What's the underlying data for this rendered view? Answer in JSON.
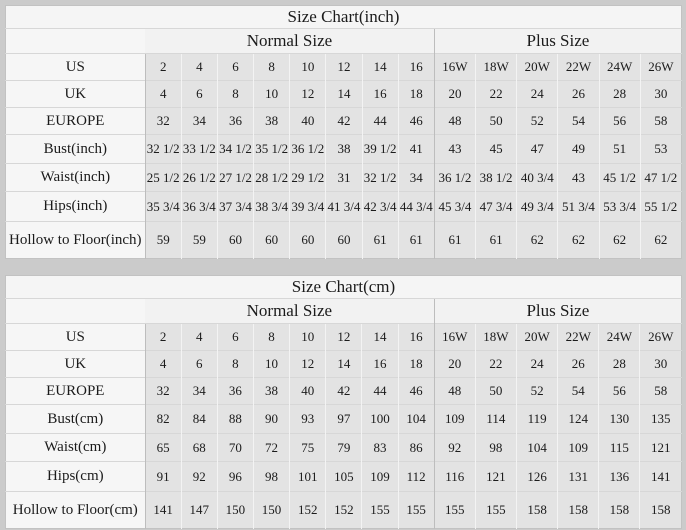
{
  "page": {
    "background": "#cbcbcb",
    "cell_gray": "#e3e3e3",
    "panel_light": "#f5f5f5"
  },
  "chart_data": [
    {
      "type": "table",
      "title": "Size Chart(inch)",
      "group_headers": [
        "Normal Size",
        "Plus Size"
      ],
      "group_spans": [
        8,
        6
      ],
      "rows": [
        {
          "label": "US",
          "values": [
            "2",
            "4",
            "6",
            "8",
            "10",
            "12",
            "14",
            "16",
            "16W",
            "18W",
            "20W",
            "22W",
            "24W",
            "26W"
          ]
        },
        {
          "label": "UK",
          "values": [
            "4",
            "6",
            "8",
            "10",
            "12",
            "14",
            "16",
            "18",
            "20",
            "22",
            "24",
            "26",
            "28",
            "30"
          ]
        },
        {
          "label": "EUROPE",
          "values": [
            "32",
            "34",
            "36",
            "38",
            "40",
            "42",
            "44",
            "46",
            "48",
            "50",
            "52",
            "54",
            "56",
            "58"
          ]
        },
        {
          "label": "Bust(inch)",
          "values": [
            "32 1/2",
            "33 1/2",
            "34 1/2",
            "35 1/2",
            "36 1/2",
            "38",
            "39 1/2",
            "41",
            "43",
            "45",
            "47",
            "49",
            "51",
            "53"
          ]
        },
        {
          "label": "Waist(inch)",
          "values": [
            "25 1/2",
            "26 1/2",
            "27 1/2",
            "28 1/2",
            "29 1/2",
            "31",
            "32 1/2",
            "34",
            "36 1/2",
            "38 1/2",
            "40 3/4",
            "43",
            "45 1/2",
            "47 1/2"
          ]
        },
        {
          "label": "Hips(inch)",
          "values": [
            "35 3/4",
            "36 3/4",
            "37 3/4",
            "38 3/4",
            "39 3/4",
            "41 3/4",
            "42 3/4",
            "44 3/4",
            "45 3/4",
            "47 3/4",
            "49 3/4",
            "51 3/4",
            "53 3/4",
            "55 1/2"
          ]
        },
        {
          "label": "Hollow to Floor(inch)",
          "values": [
            "59",
            "59",
            "60",
            "60",
            "60",
            "60",
            "61",
            "61",
            "61",
            "61",
            "62",
            "62",
            "62",
            "62"
          ]
        }
      ]
    },
    {
      "type": "table",
      "title": "Size Chart(cm)",
      "group_headers": [
        "Normal Size",
        "Plus Size"
      ],
      "group_spans": [
        8,
        6
      ],
      "rows": [
        {
          "label": "US",
          "values": [
            "2",
            "4",
            "6",
            "8",
            "10",
            "12",
            "14",
            "16",
            "16W",
            "18W",
            "20W",
            "22W",
            "24W",
            "26W"
          ]
        },
        {
          "label": "UK",
          "values": [
            "4",
            "6",
            "8",
            "10",
            "12",
            "14",
            "16",
            "18",
            "20",
            "22",
            "24",
            "26",
            "28",
            "30"
          ]
        },
        {
          "label": "EUROPE",
          "values": [
            "32",
            "34",
            "36",
            "38",
            "40",
            "42",
            "44",
            "46",
            "48",
            "50",
            "52",
            "54",
            "56",
            "58"
          ]
        },
        {
          "label": "Bust(cm)",
          "values": [
            "82",
            "84",
            "88",
            "90",
            "93",
            "97",
            "100",
            "104",
            "109",
            "114",
            "119",
            "124",
            "130",
            "135"
          ]
        },
        {
          "label": "Waist(cm)",
          "values": [
            "65",
            "68",
            "70",
            "72",
            "75",
            "79",
            "83",
            "86",
            "92",
            "98",
            "104",
            "109",
            "115",
            "121"
          ]
        },
        {
          "label": "Hips(cm)",
          "values": [
            "91",
            "92",
            "96",
            "98",
            "101",
            "105",
            "109",
            "112",
            "116",
            "121",
            "126",
            "131",
            "136",
            "141"
          ]
        },
        {
          "label": "Hollow to Floor(cm)",
          "values": [
            "141",
            "147",
            "150",
            "150",
            "152",
            "152",
            "155",
            "155",
            "155",
            "155",
            "158",
            "158",
            "158",
            "158"
          ]
        }
      ]
    }
  ]
}
